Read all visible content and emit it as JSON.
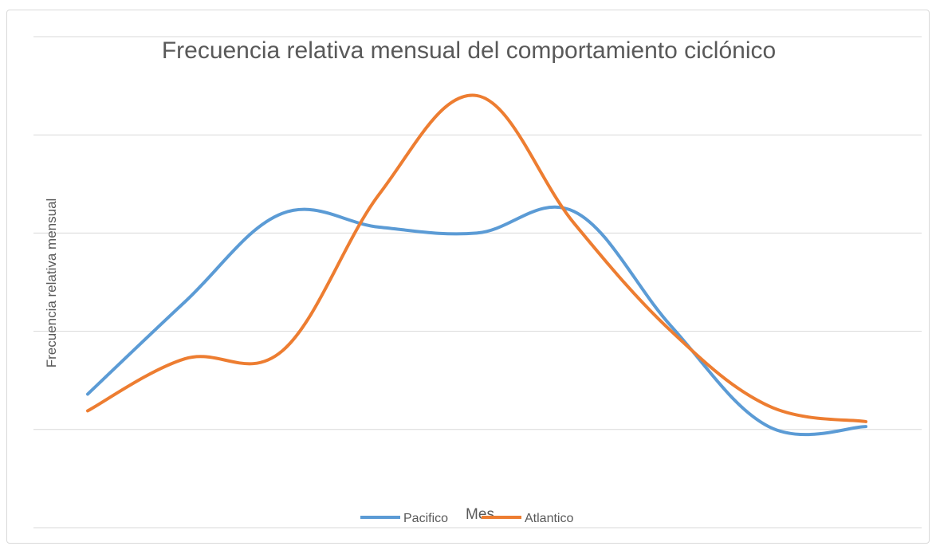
{
  "chart_data": {
    "type": "line",
    "title": "Frecuencia relativa mensual del comportamiento ciclónico",
    "xlabel": "Mes",
    "ylabel": "Frecuencia relativa mensual",
    "categories": [
      "",
      "",
      "",
      "",
      "",
      "",
      "",
      "",
      ""
    ],
    "ylim": [
      -1,
      4
    ],
    "y_gridlines": [
      -1,
      0,
      1,
      2,
      3,
      4
    ],
    "grid": true,
    "legend": "bottom",
    "smooth": true,
    "series": [
      {
        "name": "Pacifico",
        "color": "#5b9bd5",
        "values": [
          0.36,
          1.3,
          2.2,
          2.06,
          2.0,
          2.22,
          1.05,
          0.03,
          0.03
        ]
      },
      {
        "name": "Atlantico",
        "color": "#ed7d31",
        "values": [
          0.19,
          0.72,
          0.8,
          2.4,
          3.4,
          2.1,
          1.0,
          0.24,
          0.08
        ]
      }
    ]
  }
}
